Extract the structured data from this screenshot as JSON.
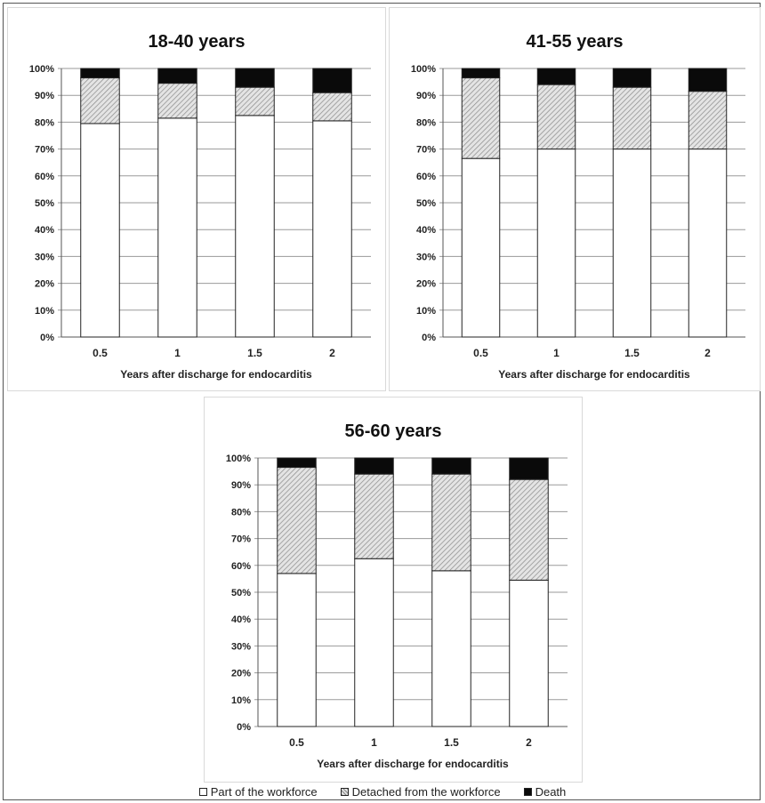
{
  "chart_data": [
    {
      "type": "bar",
      "stacked": true,
      "title": "18-40 years",
      "xlabel": "Years after discharge for endocarditis",
      "ylabel": "",
      "categories": [
        "0.5",
        "1",
        "1.5",
        "2"
      ],
      "yticks": [
        "0%",
        "10%",
        "20%",
        "30%",
        "40%",
        "50%",
        "60%",
        "70%",
        "80%",
        "90%",
        "100%"
      ],
      "ylim": [
        0,
        100
      ],
      "grid": true,
      "series": [
        {
          "name": "Part of the workforce",
          "values": [
            79.5,
            81.5,
            82.5,
            80.5
          ]
        },
        {
          "name": "Detached from the workforce",
          "values": [
            17,
            13,
            10.5,
            10.5
          ]
        },
        {
          "name": "Death",
          "values": [
            3.5,
            5.5,
            7,
            9
          ]
        }
      ]
    },
    {
      "type": "bar",
      "stacked": true,
      "title": "41-55 years",
      "xlabel": "Years after discharge for endocarditis",
      "ylabel": "",
      "categories": [
        "0.5",
        "1",
        "1.5",
        "2"
      ],
      "yticks": [
        "0%",
        "10%",
        "20%",
        "30%",
        "40%",
        "50%",
        "60%",
        "70%",
        "80%",
        "90%",
        "100%"
      ],
      "ylim": [
        0,
        100
      ],
      "grid": true,
      "series": [
        {
          "name": "Part of the workforce",
          "values": [
            66.5,
            70,
            70,
            70
          ]
        },
        {
          "name": "Detached from the workforce",
          "values": [
            30,
            24,
            23,
            21.5
          ]
        },
        {
          "name": "Death",
          "values": [
            3.5,
            6,
            7,
            8.5
          ]
        }
      ]
    },
    {
      "type": "bar",
      "stacked": true,
      "title": "56-60 years",
      "xlabel": "Years after discharge for endocarditis",
      "ylabel": "",
      "categories": [
        "0.5",
        "1",
        "1.5",
        "2"
      ],
      "yticks": [
        "0%",
        "10%",
        "20%",
        "30%",
        "40%",
        "50%",
        "60%",
        "70%",
        "80%",
        "90%",
        "100%"
      ],
      "ylim": [
        0,
        100
      ],
      "grid": true,
      "series": [
        {
          "name": "Part of the workforce",
          "values": [
            57,
            62.5,
            58,
            54.5
          ]
        },
        {
          "name": "Detached from the workforce",
          "values": [
            39.5,
            31.5,
            36,
            37.5
          ]
        },
        {
          "name": "Death",
          "values": [
            3.5,
            6,
            6,
            8
          ]
        }
      ]
    }
  ],
  "legend": {
    "position": "bottom",
    "items": [
      {
        "label": "Part of the workforce",
        "fill": "#ffffff",
        "pattern": "none"
      },
      {
        "label": "Detached from the workforce",
        "fill": "#d4d4d4",
        "pattern": "diagonal-hatch"
      },
      {
        "label": "Death",
        "fill": "#0a0a0a",
        "pattern": "none"
      }
    ]
  },
  "colors": {
    "workforce": "#ffffff",
    "detached": "#d4d4d4",
    "detached_hatch": "#8a8a8a",
    "death": "#0a0a0a",
    "grid": "#9a9a9a",
    "bar_stroke": "#222222"
  }
}
